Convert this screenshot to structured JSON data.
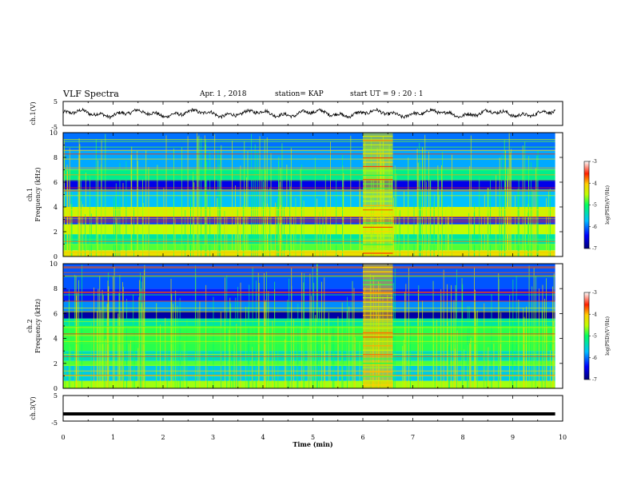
{
  "header": {
    "title": "VLF Spectra",
    "date": "Apr. 1 , 2018",
    "station": "station= KAP",
    "start": "start UT =   9 : 20 : 1"
  },
  "chart_data": [
    {
      "type": "line",
      "ylabel": "ch.1(V)",
      "ylim": [
        -5,
        5
      ],
      "yticks": [
        "5",
        "-5"
      ],
      "xlim": [
        0,
        10
      ],
      "note": "waveform oscillating roughly between -1.5 and +1.5 V"
    },
    {
      "type": "heatmap",
      "ylabel": "ch.1\nFrequency (kHz)",
      "ylabel_line1": "ch.1",
      "ylabel_line2": "Frequency (kHz)",
      "ylim": [
        0,
        10
      ],
      "yticks": [
        "0",
        "2",
        "4",
        "6",
        "8",
        "10"
      ],
      "xlim": [
        0,
        10
      ],
      "colorbar": {
        "label": "log(PSD)(V²/Hz)",
        "range": [
          -7,
          -3
        ],
        "ticks": [
          "-3",
          "-4",
          "-5",
          "-6",
          "-7"
        ]
      },
      "bands": [
        {
          "f0": 0.0,
          "f1": 0.5,
          "level": -4.2
        },
        {
          "f0": 0.5,
          "f1": 1.0,
          "level": -4.8
        },
        {
          "f0": 1.0,
          "f1": 1.8,
          "level": -5.3
        },
        {
          "f0": 1.8,
          "f1": 2.6,
          "level": -4.5
        },
        {
          "f0": 2.6,
          "f1": 3.2,
          "level": -6.2
        },
        {
          "f0": 3.2,
          "f1": 4.0,
          "level": -4.4
        },
        {
          "f0": 4.0,
          "f1": 5.4,
          "level": -5.7
        },
        {
          "f0": 5.4,
          "f1": 6.2,
          "level": -6.5
        },
        {
          "f0": 6.2,
          "f1": 7.0,
          "level": -5.2
        },
        {
          "f0": 7.0,
          "f1": 8.6,
          "level": -5.8
        },
        {
          "f0": 8.6,
          "f1": 10.0,
          "level": -6.0
        }
      ],
      "event": {
        "t0": 6.0,
        "t1": 6.6,
        "level": -4.3
      }
    },
    {
      "type": "heatmap",
      "ylabel_line1": "ch.2",
      "ylabel_line2": "Frequency (kHz)",
      "ylim": [
        0,
        10
      ],
      "yticks": [
        "0",
        "2",
        "4",
        "6",
        "8",
        "10"
      ],
      "xlim": [
        0,
        10
      ],
      "colorbar": {
        "label": "log(PSD)(V²/Hz)",
        "range": [
          -7,
          -3
        ],
        "ticks": [
          "-3",
          "-4",
          "-5",
          "-6",
          "-7"
        ]
      },
      "bands": [
        {
          "f0": 0.0,
          "f1": 0.6,
          "level": -4.6
        },
        {
          "f0": 0.6,
          "f1": 1.8,
          "level": -5.6
        },
        {
          "f0": 1.8,
          "f1": 2.2,
          "level": -4.8
        },
        {
          "f0": 2.2,
          "f1": 3.0,
          "level": -5.4
        },
        {
          "f0": 3.0,
          "f1": 5.0,
          "level": -4.9
        },
        {
          "f0": 5.0,
          "f1": 5.6,
          "level": -5.3
        },
        {
          "f0": 5.6,
          "f1": 6.2,
          "level": -6.8
        },
        {
          "f0": 6.2,
          "f1": 7.0,
          "level": -5.9
        },
        {
          "f0": 7.0,
          "f1": 8.0,
          "level": -6.3
        },
        {
          "f0": 8.0,
          "f1": 10.0,
          "level": -6.1
        }
      ],
      "event": {
        "t0": 6.0,
        "t1": 6.6,
        "level": -4.0
      }
    },
    {
      "type": "line",
      "ylabel": "ch.3(V)",
      "ylim": [
        -5,
        5
      ],
      "yticks": [
        "5",
        "-5"
      ],
      "xlim": [
        0,
        10
      ],
      "xlabel": "Time  (min)",
      "xticks": [
        "0",
        "1",
        "2",
        "3",
        "4",
        "5",
        "6",
        "7",
        "8",
        "9",
        "10"
      ],
      "constant_value": -2.2
    }
  ],
  "colors": {
    "axis": "#000000",
    "trace": "#000000"
  }
}
